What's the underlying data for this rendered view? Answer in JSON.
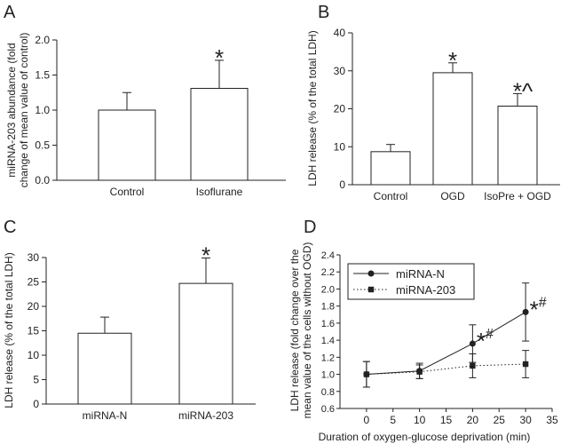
{
  "colors": {
    "ink": "#222222",
    "bar_fill": "#ffffff",
    "background": "#ffffff"
  },
  "chart_data": [
    {
      "panel": "A",
      "type": "bar",
      "categories": [
        "Control",
        "Isoflurane"
      ],
      "values": [
        1.0,
        1.31
      ],
      "errors": [
        0.25,
        0.4
      ],
      "annotations": [
        "",
        "*"
      ],
      "ylabel_lines": [
        "miRNA-203 abundance (fold",
        "change of mean value of control)"
      ],
      "xlabel": "",
      "ylim": [
        0.0,
        2.0
      ],
      "yticks": [
        "0.0",
        "0.5",
        "1.0",
        "1.5",
        "2.0"
      ],
      "grid": false
    },
    {
      "panel": "B",
      "type": "bar",
      "categories": [
        "Control",
        "OGD",
        "IsoPre + OGD"
      ],
      "values": [
        8.7,
        29.5,
        20.7
      ],
      "errors": [
        1.9,
        2.6,
        3.3
      ],
      "annotations": [
        "",
        "*",
        "*^"
      ],
      "ylabel_lines": [
        "LDH release (% of the total LDH)"
      ],
      "xlabel": "",
      "ylim": [
        0,
        40
      ],
      "yticks": [
        "0",
        "10",
        "20",
        "30",
        "40"
      ],
      "grid": false
    },
    {
      "panel": "C",
      "type": "bar",
      "categories": [
        "miRNA-N",
        "miRNA-203"
      ],
      "values": [
        14.5,
        24.7
      ],
      "errors": [
        3.3,
        5.2
      ],
      "annotations": [
        "",
        "*"
      ],
      "ylabel_lines": [
        "LDH release (% of the total LDH)"
      ],
      "xlabel": "",
      "ylim": [
        0,
        30
      ],
      "yticks": [
        "0",
        "5",
        "10",
        "15",
        "20",
        "25",
        "30"
      ],
      "grid": false
    },
    {
      "panel": "D",
      "type": "line",
      "x": [
        0,
        10,
        20,
        30
      ],
      "series": [
        {
          "name": "miRNA-N",
          "values": [
            1.0,
            1.04,
            1.36,
            1.73
          ],
          "errors": [
            0.15,
            0.09,
            0.22,
            0.34
          ],
          "annotations": [
            "",
            "",
            "*#",
            "*#"
          ],
          "marker": "circle",
          "line": "solid"
        },
        {
          "name": "miRNA-203",
          "values": [
            1.0,
            1.03,
            1.1,
            1.12
          ],
          "errors": [
            0.15,
            0.08,
            0.14,
            0.16
          ],
          "annotations": [
            "",
            "",
            "",
            ""
          ],
          "marker": "square",
          "line": "dotted"
        }
      ],
      "ylabel_lines": [
        "LDH release (fold change over the",
        "mean value of the cells without OGD)"
      ],
      "xlabel": "Duration of oxygen-glucose deprivation (min)",
      "xlim": [
        -5,
        35
      ],
      "xticks": [
        "0",
        "5",
        "10",
        "15",
        "20",
        "25",
        "30",
        "35"
      ],
      "ylim": [
        0.6,
        2.4
      ],
      "yticks": [
        "0.6",
        "0.8",
        "1.0",
        "1.2",
        "1.4",
        "1.6",
        "1.8",
        "2.0",
        "2.2",
        "2.4"
      ],
      "legend_position": "top-left",
      "grid": false
    }
  ]
}
